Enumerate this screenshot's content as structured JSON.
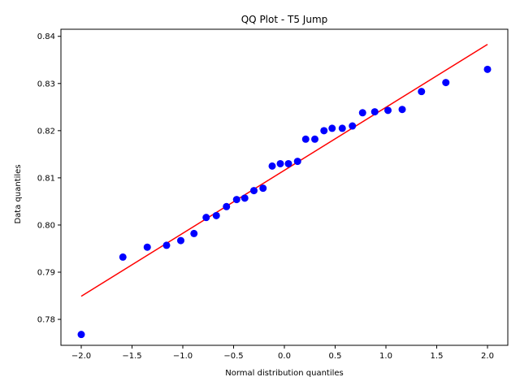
{
  "chart_data": {
    "type": "scatter",
    "title": "QQ Plot - T5 Jump",
    "xlabel": "Normal distribution quantiles",
    "ylabel": "Data quantiles",
    "xlim": [
      -2.2,
      2.2
    ],
    "ylim": [
      0.7745,
      0.8415
    ],
    "xticks": [
      -2.0,
      -1.5,
      -1.0,
      -0.5,
      0.0,
      0.5,
      1.0,
      1.5,
      2.0
    ],
    "xtick_labels": [
      "−2.0",
      "−1.5",
      "−1.0",
      "−0.5",
      "0.0",
      "0.5",
      "1.0",
      "1.5",
      "2.0"
    ],
    "yticks": [
      0.78,
      0.79,
      0.8,
      0.81,
      0.82,
      0.83,
      0.84
    ],
    "ytick_labels": [
      "0.78",
      "0.79",
      "0.80",
      "0.81",
      "0.82",
      "0.83",
      "0.84"
    ],
    "grid": false,
    "series": [
      {
        "kind": "points",
        "color": "#0000ff",
        "x": [
          -2.0,
          -1.59,
          -1.35,
          -1.16,
          -1.02,
          -0.89,
          -0.77,
          -0.67,
          -0.57,
          -0.47,
          -0.39,
          -0.3,
          -0.21,
          -0.12,
          -0.04,
          0.04,
          0.13,
          0.21,
          0.3,
          0.39,
          0.47,
          0.57,
          0.67,
          0.77,
          0.89,
          1.02,
          1.16,
          1.35,
          1.59,
          2.0
        ],
        "y": [
          0.7768,
          0.7932,
          0.7953,
          0.7957,
          0.7967,
          0.7982,
          0.8016,
          0.802,
          0.8039,
          0.8054,
          0.8057,
          0.8073,
          0.8078,
          0.8125,
          0.813,
          0.813,
          0.8135,
          0.8182,
          0.8182,
          0.82,
          0.8205,
          0.8205,
          0.821,
          0.8238,
          0.824,
          0.8243,
          0.8245,
          0.8283,
          0.8302,
          0.833
        ]
      },
      {
        "kind": "line",
        "color": "#ff0000",
        "x": [
          -2.0,
          2.0
        ],
        "y": [
          0.7849,
          0.8383
        ]
      }
    ]
  }
}
